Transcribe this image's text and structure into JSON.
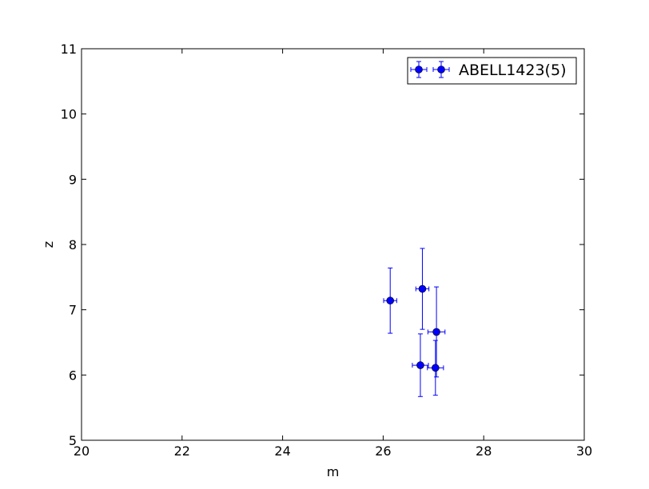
{
  "chart_data": {
    "type": "scatter",
    "xlabel": "m",
    "ylabel": "z",
    "xlim": [
      20,
      30
    ],
    "ylim": [
      5,
      11
    ],
    "xticks": [
      "20",
      "22",
      "24",
      "26",
      "28",
      "30"
    ],
    "yticks": [
      "5",
      "6",
      "7",
      "8",
      "9",
      "10",
      "11"
    ],
    "grid": false,
    "legend_position": "top-right",
    "series": [
      {
        "name": "ABELL1423(5)",
        "color": "#0000ff",
        "marker": "circle",
        "points": [
          {
            "x": 26.14,
            "y": 7.14,
            "xerr": 0.13,
            "yerr": 0.5
          },
          {
            "x": 26.78,
            "y": 7.32,
            "xerr": 0.13,
            "yerr": 0.62
          },
          {
            "x": 27.06,
            "y": 6.66,
            "xerr": 0.17,
            "yerr": 0.69
          },
          {
            "x": 26.74,
            "y": 6.15,
            "xerr": 0.16,
            "yerr": 0.48
          },
          {
            "x": 27.04,
            "y": 6.11,
            "xerr": 0.16,
            "yerr": 0.42
          }
        ]
      }
    ]
  }
}
